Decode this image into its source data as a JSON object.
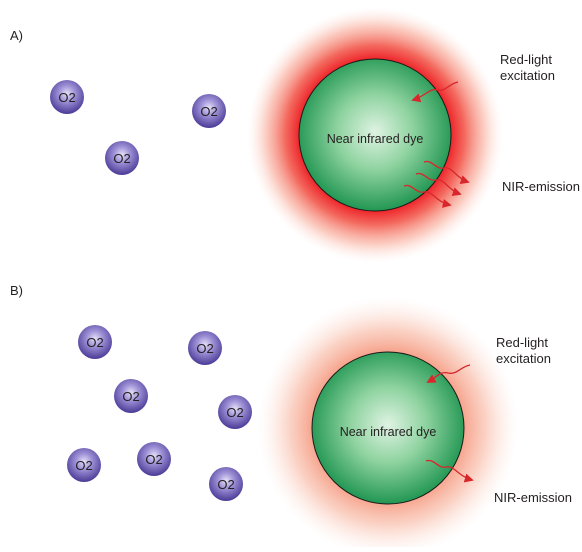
{
  "panels": [
    {
      "label": "A)",
      "molecules": [
        "O2",
        "O2",
        "O2"
      ],
      "dye_label": "Near infrared dye",
      "excitation_label": "Red-light\nexcitation",
      "emission_label": "NIR-emission",
      "emission_arrow_count": 3
    },
    {
      "label": "B)",
      "molecules": [
        "O2",
        "O2",
        "O2",
        "O2",
        "O2",
        "O2",
        "O2"
      ],
      "dye_label": "Near infrared dye",
      "excitation_label": "Red-light\nexcitation",
      "emission_label": "NIR-emission",
      "emission_arrow_count": 1
    }
  ],
  "colors": {
    "glow_strong": "#ed1c24",
    "glow_weak": "#f7a08a",
    "dye_center": "#d7f0dc",
    "dye_edge": "#1f9a4a",
    "molecule": "#4f3f9a",
    "arrow": "#d8262b",
    "text": "#231f20"
  }
}
